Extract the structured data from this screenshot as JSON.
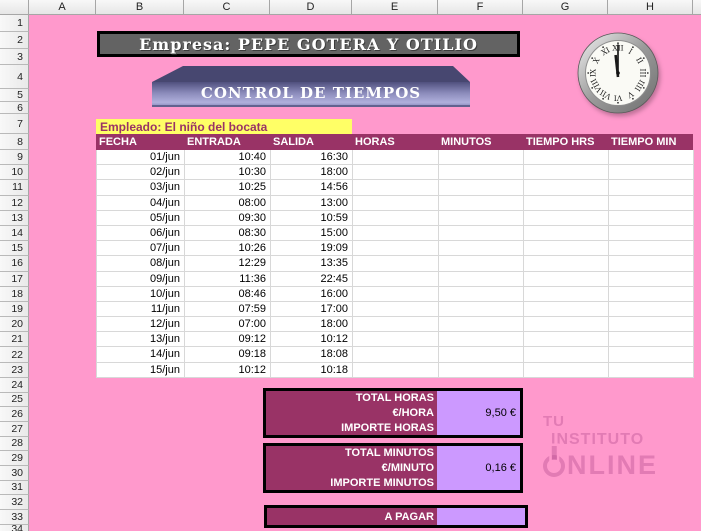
{
  "spreadsheet": {
    "column_headers": [
      "A",
      "B",
      "C",
      "D",
      "E",
      "F",
      "G",
      "H"
    ],
    "row_headers": [
      "1",
      "2",
      "3",
      "4",
      "5",
      "6",
      "7",
      "8",
      "9",
      "10",
      "11",
      "12",
      "13",
      "14",
      "15",
      "16",
      "17",
      "18",
      "19",
      "20",
      "21",
      "22",
      "23",
      "24",
      "25",
      "26",
      "27",
      "28",
      "29",
      "30",
      "31",
      "32",
      "33",
      "34"
    ]
  },
  "header": {
    "company_label": "Empresa: PEPE GOTERA Y OTILIO",
    "banner_label": "CONTROL DE TIEMPOS",
    "clock": {
      "time_shown": "12:00",
      "numerals": [
        "XII",
        "I",
        "II",
        "III",
        "IIII",
        "V",
        "VI",
        "VII",
        "VIII",
        "IX",
        "X",
        "XI"
      ]
    }
  },
  "employee": {
    "label": "Empleado: El niño del bocata"
  },
  "table": {
    "columns": [
      "FECHA",
      "ENTRADA",
      "SALIDA",
      "HORAS",
      "MINUTOS",
      "TIEMPO HRS",
      "TIEMPO MIN"
    ],
    "rows": [
      {
        "fecha": "01/jun",
        "entrada": "10:40",
        "salida": "16:30",
        "horas": "",
        "minutos": "",
        "tiempo_hrs": "",
        "tiempo_min": ""
      },
      {
        "fecha": "02/jun",
        "entrada": "10:30",
        "salida": "18:00",
        "horas": "",
        "minutos": "",
        "tiempo_hrs": "",
        "tiempo_min": ""
      },
      {
        "fecha": "03/jun",
        "entrada": "10:25",
        "salida": "14:56",
        "horas": "",
        "minutos": "",
        "tiempo_hrs": "",
        "tiempo_min": ""
      },
      {
        "fecha": "04/jun",
        "entrada": "08:00",
        "salida": "13:00",
        "horas": "",
        "minutos": "",
        "tiempo_hrs": "",
        "tiempo_min": ""
      },
      {
        "fecha": "05/jun",
        "entrada": "09:30",
        "salida": "10:59",
        "horas": "",
        "minutos": "",
        "tiempo_hrs": "",
        "tiempo_min": ""
      },
      {
        "fecha": "06/jun",
        "entrada": "08:30",
        "salida": "15:00",
        "horas": "",
        "minutos": "",
        "tiempo_hrs": "",
        "tiempo_min": ""
      },
      {
        "fecha": "07/jun",
        "entrada": "10:26",
        "salida": "19:09",
        "horas": "",
        "minutos": "",
        "tiempo_hrs": "",
        "tiempo_min": ""
      },
      {
        "fecha": "08/jun",
        "entrada": "12:29",
        "salida": "13:35",
        "horas": "",
        "minutos": "",
        "tiempo_hrs": "",
        "tiempo_min": ""
      },
      {
        "fecha": "09/jun",
        "entrada": "11:36",
        "salida": "22:45",
        "horas": "",
        "minutos": "",
        "tiempo_hrs": "",
        "tiempo_min": ""
      },
      {
        "fecha": "10/jun",
        "entrada": "08:46",
        "salida": "16:00",
        "horas": "",
        "minutos": "",
        "tiempo_hrs": "",
        "tiempo_min": ""
      },
      {
        "fecha": "11/jun",
        "entrada": "07:59",
        "salida": "17:00",
        "horas": "",
        "minutos": "",
        "tiempo_hrs": "",
        "tiempo_min": ""
      },
      {
        "fecha": "12/jun",
        "entrada": "07:00",
        "salida": "18:00",
        "horas": "",
        "minutos": "",
        "tiempo_hrs": "",
        "tiempo_min": ""
      },
      {
        "fecha": "13/jun",
        "entrada": "09:12",
        "salida": "10:12",
        "horas": "",
        "minutos": "",
        "tiempo_hrs": "",
        "tiempo_min": ""
      },
      {
        "fecha": "14/jun",
        "entrada": "09:18",
        "salida": "18:08",
        "horas": "",
        "minutos": "",
        "tiempo_hrs": "",
        "tiempo_min": ""
      },
      {
        "fecha": "15/jun",
        "entrada": "10:12",
        "salida": "10:18",
        "horas": "",
        "minutos": "",
        "tiempo_hrs": "",
        "tiempo_min": ""
      }
    ]
  },
  "totals": {
    "hours": {
      "rows": [
        {
          "label": "TOTAL HORAS",
          "value": ""
        },
        {
          "label": "€/HORA",
          "value": "9,50 €"
        },
        {
          "label": "IMPORTE HORAS",
          "value": ""
        }
      ]
    },
    "minutes": {
      "rows": [
        {
          "label": "TOTAL MINUTOS",
          "value": ""
        },
        {
          "label": "€/MINUTO",
          "value": "0,16 €"
        },
        {
          "label": "IMPORTE MINUTOS",
          "value": ""
        }
      ]
    },
    "pay": {
      "label": "A PAGAR",
      "value": ""
    }
  },
  "watermark": {
    "line1": "TU",
    "line2": "INSTITUTO",
    "line3_suffix": "NLINE"
  },
  "colors": {
    "sheet_background": "#ff99cc",
    "table_header": "#993366",
    "value_cell": "#cc99ff",
    "employee_highlight": "#ffff66",
    "company_box": "#636363",
    "banner_dark": "#474770"
  }
}
